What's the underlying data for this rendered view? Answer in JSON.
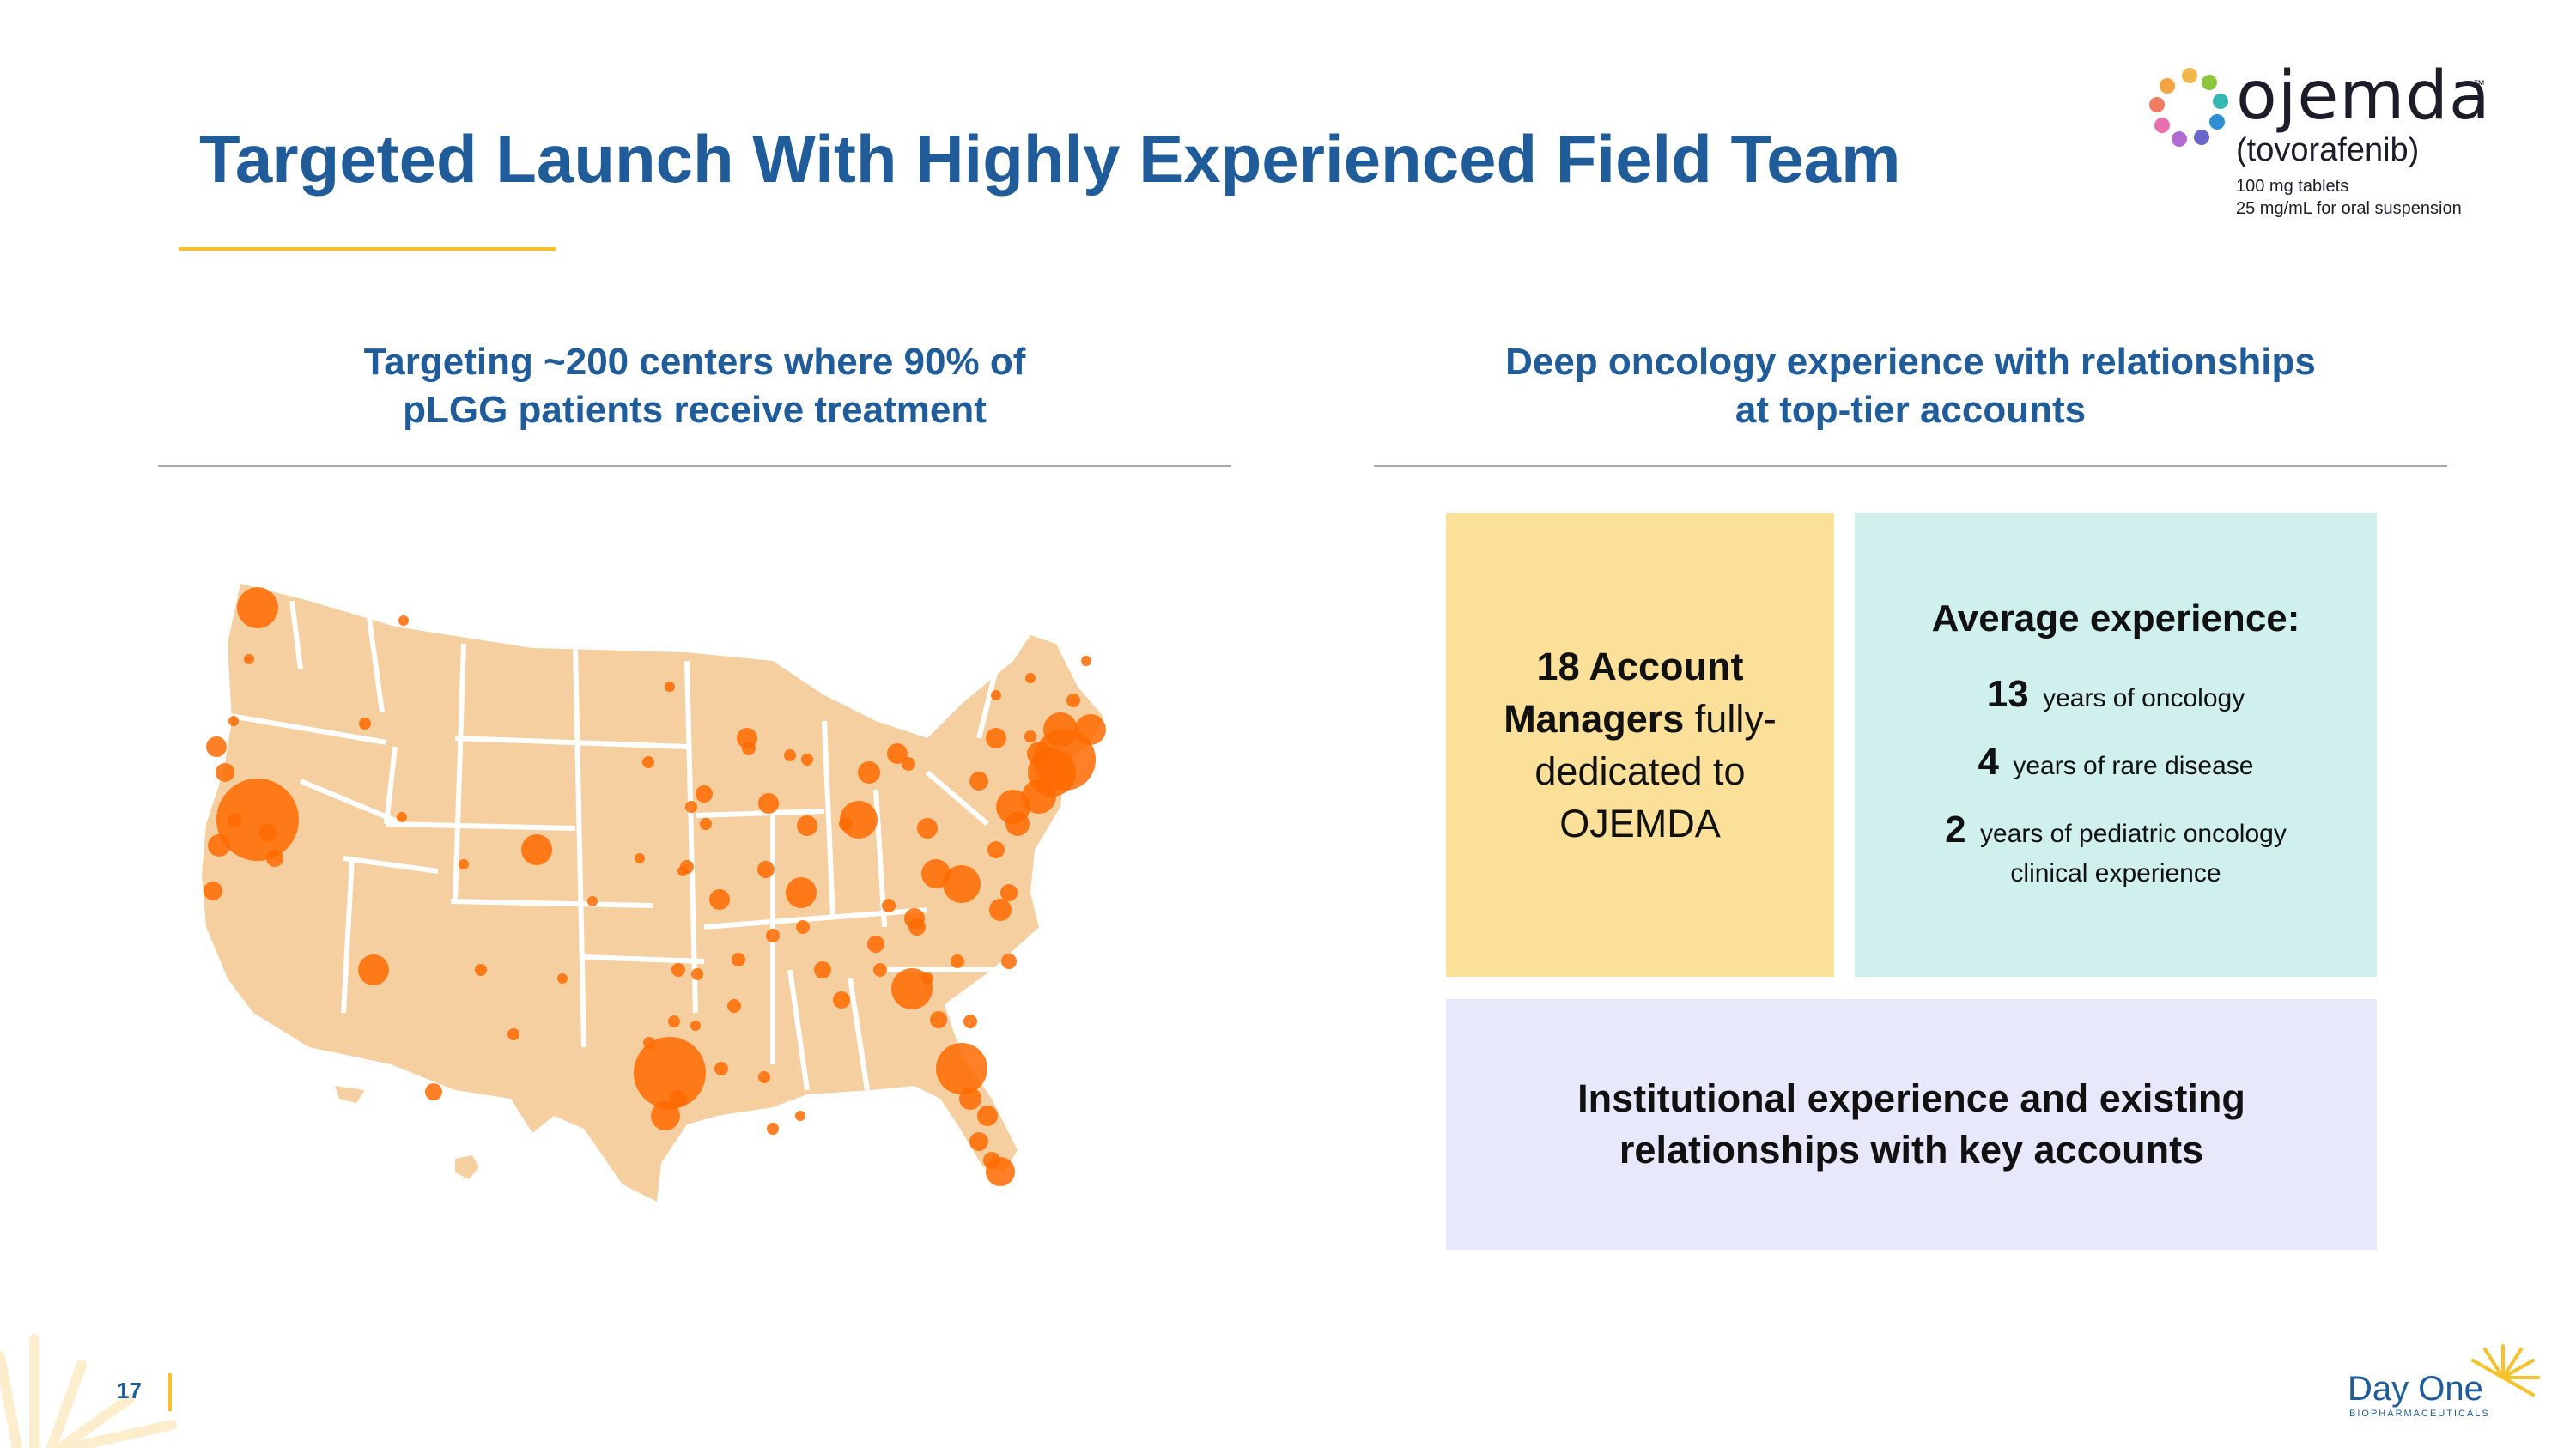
{
  "slide": {
    "title": "Targeted Launch With Highly Experienced Field Team",
    "page_number": "17"
  },
  "logo": {
    "brand": "ojemda",
    "trademark": "™",
    "generic_name": "(tovorafenib)",
    "dose_line_1": "100 mg tablets",
    "dose_line_2": "25 mg/mL for oral suspension"
  },
  "left_column": {
    "heading_line_1": "Targeting ~200 centers where 90% of",
    "heading_line_2": "pLGG patients receive treatment"
  },
  "right_column": {
    "heading_line_1": "Deep oncology experience with relationships",
    "heading_line_2": "at top-tier accounts"
  },
  "account_managers": {
    "bold_part": "18 Account Managers",
    "rest": "fully-dedicated to OJEMDA"
  },
  "average_experience": {
    "title": "Average experience:",
    "stats": [
      {
        "value": "13",
        "label": "years of oncology"
      },
      {
        "value": "4",
        "label": "years of rare disease"
      },
      {
        "value": "2",
        "label": "years of pediatric oncology",
        "label_line_2": "clinical experience"
      }
    ]
  },
  "institutional": {
    "line_1": "Institutional experience and existing",
    "line_2": "relationships with key accounts"
  },
  "footer": {
    "company": "Day One",
    "company_sub": "BIOPHARMACEUTICALS"
  },
  "colors": {
    "title_blue": "#1f5c99",
    "accent_yellow": "#f6c12a",
    "map_fill": "#f5cfa0",
    "dot_orange": "#ff6a00",
    "box_yellow": "#fbe09a",
    "box_teal": "#d0f0ed",
    "box_lavender": "#e8e8fb"
  }
}
